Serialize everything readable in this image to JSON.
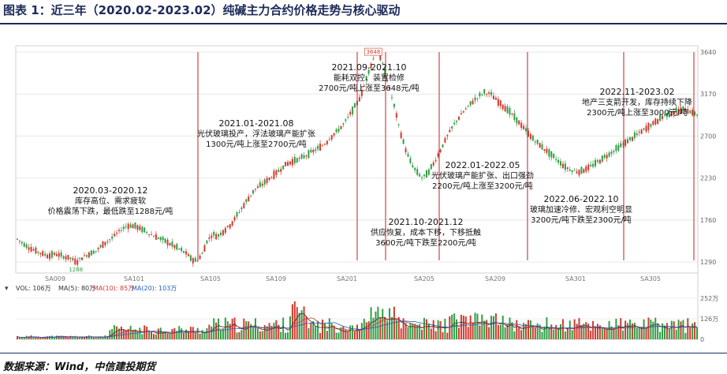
{
  "title": "图表 1：近三年（2020.02-2023.02）纯碱主力合约价格走势与核心驱动",
  "source": "数据来源：Wind，中信建投期货",
  "chart_data": {
    "type": "candlestick",
    "price_axis": {
      "min": 1290,
      "max": 3640,
      "ticks": [
        1290,
        1760,
        2230,
        2700,
        3170,
        3640
      ]
    },
    "x_ticks": [
      "SA009",
      "SA101",
      "SA105",
      "SA109",
      "SA201",
      "SA205",
      "SA209",
      "SA301",
      "SA305"
    ],
    "volume_legend": {
      "vol": "VOL: 106万",
      "ma5": "MA(5): 80万",
      "ma10": "MA(10): 85万",
      "ma20": "MA(20): 103万"
    },
    "volume_axis": {
      "ticks": [
        "252万",
        "126万",
        "0"
      ]
    },
    "price_labels": {
      "high": "3648",
      "low": "1288"
    },
    "price_path": [
      [
        0,
        1560
      ],
      [
        12,
        1480
      ],
      [
        22,
        1430
      ],
      [
        32,
        1390
      ],
      [
        42,
        1360
      ],
      [
        52,
        1380
      ],
      [
        62,
        1350
      ],
      [
        72,
        1330
      ],
      [
        78,
        1288
      ],
      [
        86,
        1340
      ],
      [
        95,
        1380
      ],
      [
        105,
        1420
      ],
      [
        115,
        1500
      ],
      [
        125,
        1560
      ],
      [
        135,
        1640
      ],
      [
        145,
        1700
      ],
      [
        155,
        1690
      ],
      [
        165,
        1650
      ],
      [
        175,
        1600
      ],
      [
        185,
        1560
      ],
      [
        195,
        1520
      ],
      [
        205,
        1470
      ],
      [
        215,
        1420
      ],
      [
        222,
        1380
      ],
      [
        228,
        1320
      ],
      [
        235,
        1300
      ],
      [
        242,
        1380
      ],
      [
        248,
        1520
      ],
      [
        255,
        1600
      ],
      [
        262,
        1580
      ],
      [
        270,
        1640
      ],
      [
        280,
        1720
      ],
      [
        290,
        1850
      ],
      [
        300,
        1980
      ],
      [
        310,
        2100
      ],
      [
        320,
        2160
      ],
      [
        330,
        2230
      ],
      [
        340,
        2300
      ],
      [
        350,
        2380
      ],
      [
        360,
        2420
      ],
      [
        370,
        2450
      ],
      [
        380,
        2500
      ],
      [
        392,
        2560
      ],
      [
        402,
        2620
      ],
      [
        410,
        2700
      ],
      [
        418,
        2760
      ],
      [
        426,
        2840
      ],
      [
        434,
        2950
      ],
      [
        442,
        3050
      ],
      [
        450,
        3200
      ],
      [
        456,
        3380
      ],
      [
        462,
        3520
      ],
      [
        468,
        3648
      ],
      [
        474,
        3560
      ],
      [
        480,
        3400
      ],
      [
        486,
        3200
      ],
      [
        492,
        3000
      ],
      [
        498,
        2780
      ],
      [
        504,
        2600
      ],
      [
        510,
        2450
      ],
      [
        516,
        2350
      ],
      [
        522,
        2280
      ],
      [
        528,
        2230
      ],
      [
        536,
        2300
      ],
      [
        544,
        2420
      ],
      [
        552,
        2560
      ],
      [
        560,
        2700
      ],
      [
        568,
        2820
      ],
      [
        576,
        2920
      ],
      [
        584,
        3000
      ],
      [
        592,
        3080
      ],
      [
        600,
        3140
      ],
      [
        608,
        3190
      ],
      [
        616,
        3170
      ],
      [
        624,
        3100
      ],
      [
        632,
        3040
      ],
      [
        640,
        2980
      ],
      [
        648,
        2900
      ],
      [
        656,
        2820
      ],
      [
        664,
        2740
      ],
      [
        672,
        2660
      ],
      [
        680,
        2600
      ],
      [
        688,
        2540
      ],
      [
        696,
        2480
      ],
      [
        704,
        2420
      ],
      [
        712,
        2360
      ],
      [
        720,
        2320
      ],
      [
        730,
        2300
      ],
      [
        740,
        2330
      ],
      [
        750,
        2380
      ],
      [
        760,
        2440
      ],
      [
        770,
        2500
      ],
      [
        780,
        2560
      ],
      [
        790,
        2620
      ],
      [
        800,
        2680
      ],
      [
        810,
        2740
      ],
      [
        820,
        2800
      ],
      [
        830,
        2860
      ],
      [
        840,
        2920
      ],
      [
        850,
        2960
      ],
      [
        860,
        2980
      ],
      [
        870,
        3000
      ],
      [
        878,
        2960
      ],
      [
        885,
        2940
      ]
    ],
    "events": [
      {
        "date": "2020.03-2020.12",
        "desc1": "库存高位、需求疲软",
        "desc2": "价格震荡下跌，最低跌至1288元/吨"
      },
      {
        "date": "2021.01-2021.08",
        "desc1": "光伏玻璃投产，浮法玻璃产能扩张",
        "desc2": "1300元/吨上涨至2700元/吨"
      },
      {
        "date": "2021.09-2021.10",
        "desc1": "能耗双控、装置检修",
        "desc2": "2700元/吨上涨至3648元/吨"
      },
      {
        "date": "2021.10-2021.12",
        "desc1": "供应恢复，成本下移，下移抵触",
        "desc2": "3600元/吨下跌至2200元/吨"
      },
      {
        "date": "2022.01-2022.05",
        "desc1": "光伏玻璃产能扩张、出口强劲",
        "desc2": "2200元/吨上涨至3200元/吨"
      },
      {
        "date": "2022.06-2022.10",
        "desc1": "玻璃加速冷修、宏观利空明显",
        "desc2": "3200元/吨下跌至2300元/吨"
      },
      {
        "date": "2022.11-2023.02",
        "desc1": "地产三支箭开发，库存持续下降",
        "desc2": "2300元/吨上涨至3000元/吨"
      }
    ]
  }
}
